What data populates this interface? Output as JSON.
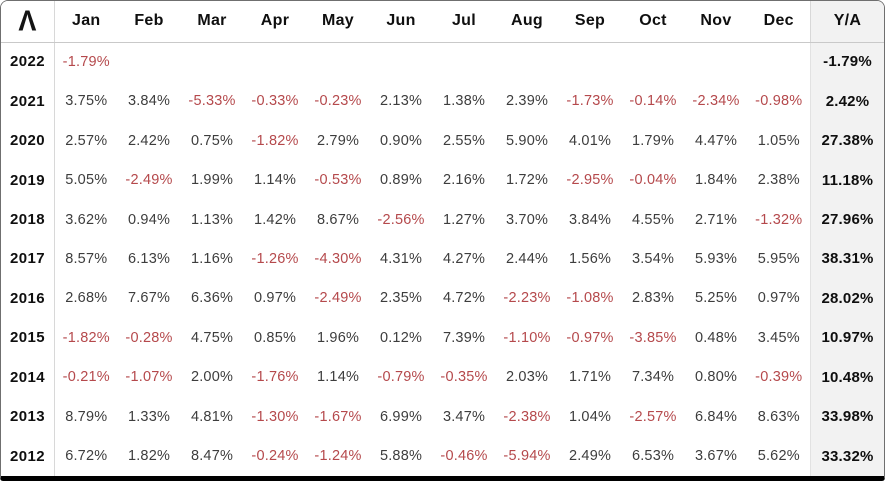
{
  "table": {
    "logo_glyph": "Λ",
    "columns": [
      "Jan",
      "Feb",
      "Mar",
      "Apr",
      "May",
      "Jun",
      "Jul",
      "Aug",
      "Sep",
      "Oct",
      "Nov",
      "Dec"
    ],
    "ya_label": "Y/A",
    "rows": [
      {
        "year": "2022",
        "months": [
          "-1.79%",
          "",
          "",
          "",
          "",
          "",
          "",
          "",
          "",
          "",
          "",
          ""
        ],
        "ya": "-1.79%"
      },
      {
        "year": "2021",
        "months": [
          "3.75%",
          "3.84%",
          "-5.33%",
          "-0.33%",
          "-0.23%",
          "2.13%",
          "1.38%",
          "2.39%",
          "-1.73%",
          "-0.14%",
          "-2.34%",
          "-0.98%"
        ],
        "ya": "2.42%"
      },
      {
        "year": "2020",
        "months": [
          "2.57%",
          "2.42%",
          "0.75%",
          "-1.82%",
          "2.79%",
          "0.90%",
          "2.55%",
          "5.90%",
          "4.01%",
          "1.79%",
          "4.47%",
          "1.05%"
        ],
        "ya": "27.38%"
      },
      {
        "year": "2019",
        "months": [
          "5.05%",
          "-2.49%",
          "1.99%",
          "1.14%",
          "-0.53%",
          "0.89%",
          "2.16%",
          "1.72%",
          "-2.95%",
          "-0.04%",
          "1.84%",
          "2.38%"
        ],
        "ya": "11.18%"
      },
      {
        "year": "2018",
        "months": [
          "3.62%",
          "0.94%",
          "1.13%",
          "1.42%",
          "8.67%",
          "-2.56%",
          "1.27%",
          "3.70%",
          "3.84%",
          "4.55%",
          "2.71%",
          "-1.32%"
        ],
        "ya": "27.96%"
      },
      {
        "year": "2017",
        "months": [
          "8.57%",
          "6.13%",
          "1.16%",
          "-1.26%",
          "-4.30%",
          "4.31%",
          "4.27%",
          "2.44%",
          "1.56%",
          "3.54%",
          "5.93%",
          "5.95%"
        ],
        "ya": "38.31%"
      },
      {
        "year": "2016",
        "months": [
          "2.68%",
          "7.67%",
          "6.36%",
          "0.97%",
          "-2.49%",
          "2.35%",
          "4.72%",
          "-2.23%",
          "-1.08%",
          "2.83%",
          "5.25%",
          "0.97%"
        ],
        "ya": "28.02%"
      },
      {
        "year": "2015",
        "months": [
          "-1.82%",
          "-0.28%",
          "4.75%",
          "0.85%",
          "1.96%",
          "0.12%",
          "7.39%",
          "-1.10%",
          "-0.97%",
          "-3.85%",
          "0.48%",
          "3.45%"
        ],
        "ya": "10.97%"
      },
      {
        "year": "2014",
        "months": [
          "-0.21%",
          "-1.07%",
          "2.00%",
          "-1.76%",
          "1.14%",
          "-0.79%",
          "-0.35%",
          "2.03%",
          "1.71%",
          "7.34%",
          "0.80%",
          "-0.39%"
        ],
        "ya": "10.48%"
      },
      {
        "year": "2013",
        "months": [
          "8.79%",
          "1.33%",
          "4.81%",
          "-1.30%",
          "-1.67%",
          "6.99%",
          "3.47%",
          "-2.38%",
          "1.04%",
          "-2.57%",
          "6.84%",
          "8.63%"
        ],
        "ya": "33.98%"
      },
      {
        "year": "2012",
        "months": [
          "6.72%",
          "1.82%",
          "8.47%",
          "-0.24%",
          "-1.24%",
          "5.88%",
          "-0.46%",
          "-5.94%",
          "2.49%",
          "6.53%",
          "3.67%",
          "5.62%"
        ],
        "ya": "33.32%"
      }
    ]
  },
  "colors": {
    "negative_text": "#b5494c",
    "positive_text": "#3d3d3d",
    "header_text": "#0f0f0f",
    "ya_column_background": "#f2f2f2",
    "grid_line": "#d8d8d8",
    "bottom_bar": "#000000"
  }
}
